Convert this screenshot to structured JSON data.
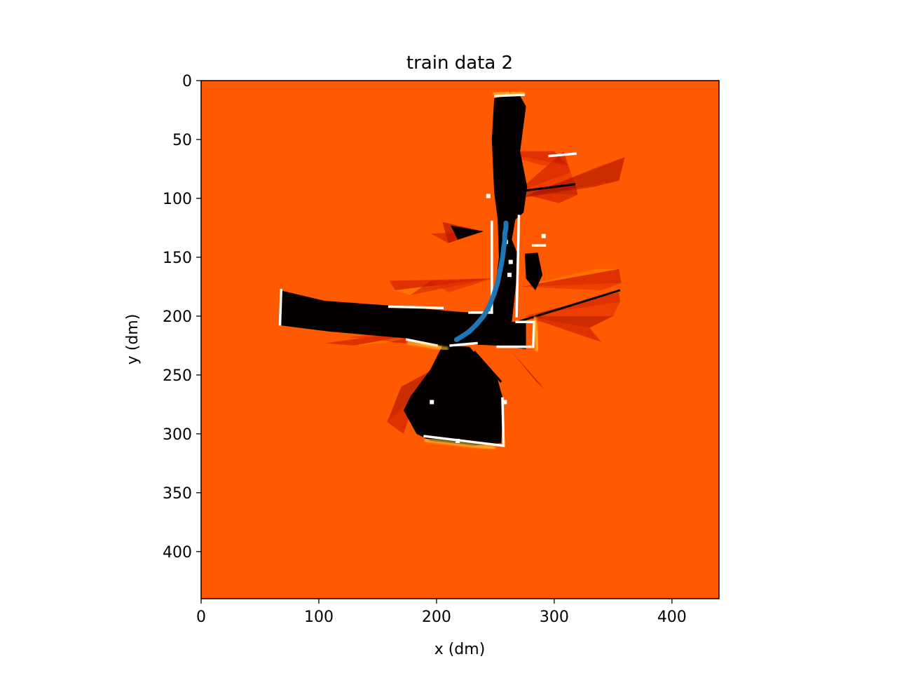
{
  "chart_data": {
    "type": "heatmap",
    "title": "train data 2",
    "xlabel": "x (dm)",
    "ylabel": "y (dm)",
    "xlim": [
      0,
      440
    ],
    "ylim": [
      440,
      0
    ],
    "xticks": [
      0,
      100,
      200,
      300,
      400
    ],
    "yticks": [
      0,
      50,
      100,
      150,
      200,
      250,
      300,
      350,
      400
    ],
    "colormap": "hot",
    "colors": {
      "unknown": "#ff5a00",
      "free": "#050000",
      "occupied_edge": "#ffffff",
      "mid": "#c41200",
      "warm": "#ffd040",
      "trajectory": "#1f77b4"
    },
    "series": [
      {
        "type": "line",
        "x": [
          217,
          222,
          228,
          234,
          240,
          245,
          249,
          252,
          254,
          256,
          257,
          258,
          258,
          259,
          259
        ],
        "y": [
          220,
          217,
          213,
          207,
          200,
          191,
          181,
          171,
          161,
          151,
          143,
          136,
          130,
          125,
          121
        ]
      }
    ]
  }
}
